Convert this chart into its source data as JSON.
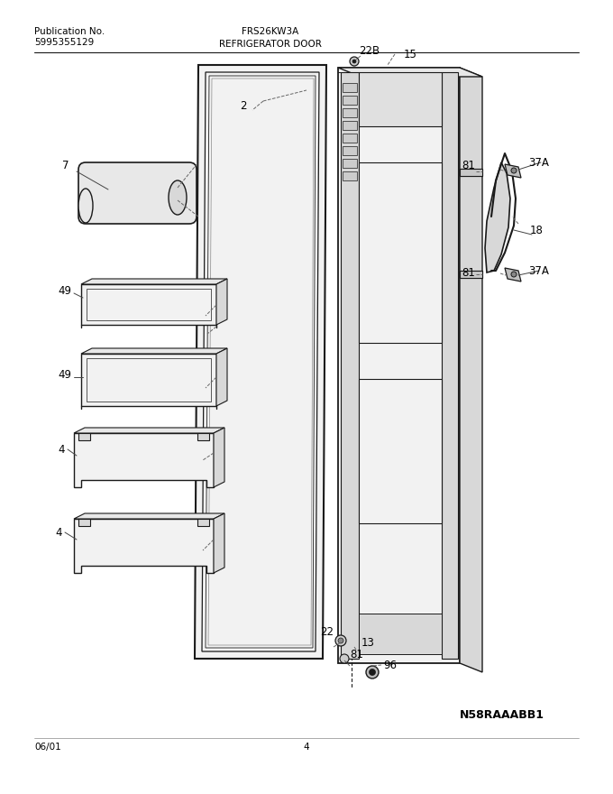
{
  "title": "REFRIGERATOR DOOR",
  "pub_no_label": "Publication No.",
  "pub_no": "5995355129",
  "model": "FRS26KW3A",
  "date": "06/01",
  "page": "4",
  "diagram_id": "N58RAAABB1",
  "bg_color": "#ffffff",
  "lc": "#1a1a1a",
  "gray_fill": "#e8e8e8",
  "light_fill": "#f2f2f2",
  "med_fill": "#d8d8d8"
}
